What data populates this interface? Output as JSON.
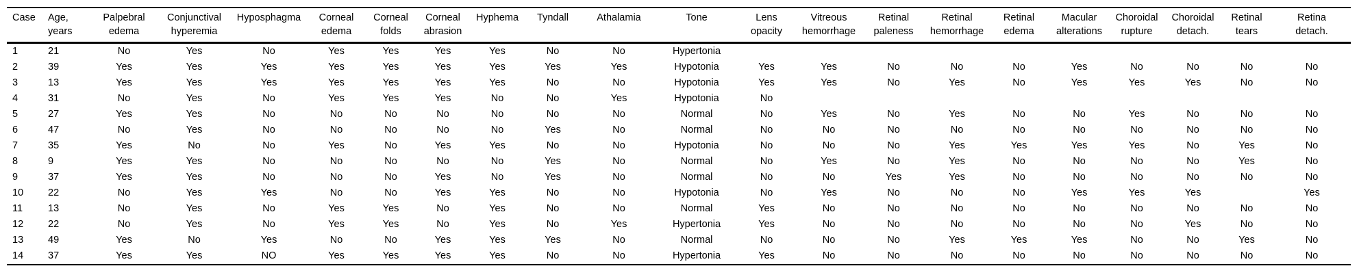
{
  "table": {
    "columns": [
      {
        "id": "case",
        "line1": "Case",
        "line2": ""
      },
      {
        "id": "age-years",
        "line1": "Age,",
        "line2": "years"
      },
      {
        "id": "palpebral-edema",
        "line1": "Palpebral",
        "line2": "edema"
      },
      {
        "id": "conjunctival-hyperemia",
        "line1": "Conjunctival",
        "line2": "hyperemia"
      },
      {
        "id": "hyposphagma",
        "line1": "Hyposphagma",
        "line2": ""
      },
      {
        "id": "corneal-edema",
        "line1": "Corneal",
        "line2": "edema"
      },
      {
        "id": "corneal-folds",
        "line1": "Corneal",
        "line2": "folds"
      },
      {
        "id": "corneal-abrasion",
        "line1": "Corneal",
        "line2": "abrasion"
      },
      {
        "id": "hyphema",
        "line1": "Hyphema",
        "line2": ""
      },
      {
        "id": "tyndall",
        "line1": "Tyndall",
        "line2": ""
      },
      {
        "id": "athalamia",
        "line1": "Athalamia",
        "line2": ""
      },
      {
        "id": "tone",
        "line1": "Tone",
        "line2": ""
      },
      {
        "id": "lens-opacity",
        "line1": "Lens",
        "line2": "opacity"
      },
      {
        "id": "vitreous-hemorrhage",
        "line1": "Vitreous",
        "line2": "hemorrhage"
      },
      {
        "id": "retinal-paleness",
        "line1": "Retinal",
        "line2": "paleness"
      },
      {
        "id": "retinal-hemorrhage",
        "line1": "Retinal",
        "line2": "hemorrhage"
      },
      {
        "id": "retinal-edema",
        "line1": "Retinal",
        "line2": "edema"
      },
      {
        "id": "macular-alterations",
        "line1": "Macular",
        "line2": "alterations"
      },
      {
        "id": "choroidal-rupture",
        "line1": "Choroidal",
        "line2": "rupture"
      },
      {
        "id": "choroidal-detach",
        "line1": "Choroidal",
        "line2": "detach."
      },
      {
        "id": "retinal-tears",
        "line1": "Retinal",
        "line2": "tears"
      },
      {
        "id": "retina-detach",
        "line1": "Retina",
        "line2": "detach."
      }
    ],
    "rows": [
      [
        "1",
        "21",
        "No",
        "Yes",
        "No",
        "Yes",
        "Yes",
        "Yes",
        "Yes",
        "No",
        "No",
        "Hypertonia",
        "",
        "",
        "",
        "",
        "",
        "",
        "",
        "",
        "",
        ""
      ],
      [
        "2",
        "39",
        "Yes",
        "Yes",
        "Yes",
        "Yes",
        "Yes",
        "Yes",
        "Yes",
        "Yes",
        "Yes",
        "Hypotonia",
        "Yes",
        "Yes",
        "No",
        "No",
        "No",
        "Yes",
        "No",
        "No",
        "No",
        "No"
      ],
      [
        "3",
        "13",
        "Yes",
        "Yes",
        "Yes",
        "Yes",
        "Yes",
        "Yes",
        "Yes",
        "No",
        "No",
        "Hypotonia",
        "Yes",
        "Yes",
        "No",
        "Yes",
        "No",
        "Yes",
        "Yes",
        "Yes",
        "No",
        "No"
      ],
      [
        "4",
        "31",
        "No",
        "Yes",
        "No",
        "Yes",
        "Yes",
        "Yes",
        "No",
        "No",
        "Yes",
        "Hypotonia",
        "No",
        "",
        "",
        "",
        "",
        "",
        "",
        "",
        "",
        ""
      ],
      [
        "5",
        "27",
        "Yes",
        "Yes",
        "No",
        "No",
        "No",
        "No",
        "No",
        "No",
        "No",
        "Normal",
        "No",
        "Yes",
        "No",
        "Yes",
        "No",
        "No",
        "Yes",
        "No",
        "No",
        "No"
      ],
      [
        "6",
        "47",
        "No",
        "Yes",
        "No",
        "No",
        "No",
        "No",
        "No",
        "Yes",
        "No",
        "Normal",
        "No",
        "No",
        "No",
        "No",
        "No",
        "No",
        "No",
        "No",
        "No",
        "No"
      ],
      [
        "7",
        "35",
        "Yes",
        "No",
        "No",
        "Yes",
        "No",
        "Yes",
        "Yes",
        "No",
        "No",
        "Hypotonia",
        "No",
        "No",
        "No",
        "Yes",
        "Yes",
        "Yes",
        "Yes",
        "No",
        "Yes",
        "No"
      ],
      [
        "8",
        "9",
        "Yes",
        "Yes",
        "No",
        "No",
        "No",
        "No",
        "No",
        "Yes",
        "No",
        "Normal",
        "No",
        "Yes",
        "No",
        "Yes",
        "No",
        "No",
        "No",
        "No",
        "Yes",
        "No"
      ],
      [
        "9",
        "37",
        "Yes",
        "Yes",
        "No",
        "No",
        "No",
        "Yes",
        "No",
        "Yes",
        "No",
        "Normal",
        "No",
        "No",
        "Yes",
        "Yes",
        "No",
        "No",
        "No",
        "No",
        "No",
        "No"
      ],
      [
        "10",
        "22",
        "No",
        "Yes",
        "Yes",
        "No",
        "No",
        "Yes",
        "Yes",
        "No",
        "No",
        "Hypotonia",
        "No",
        "Yes",
        "No",
        "No",
        "No",
        "Yes",
        "Yes",
        "Yes",
        "",
        "Yes"
      ],
      [
        "11",
        "13",
        "No",
        "Yes",
        "No",
        "Yes",
        "Yes",
        "No",
        "Yes",
        "No",
        "No",
        "Normal",
        "Yes",
        "No",
        "No",
        "No",
        "No",
        "No",
        "No",
        "No",
        "No",
        "No"
      ],
      [
        "12",
        "22",
        "No",
        "Yes",
        "No",
        "Yes",
        "Yes",
        "No",
        "Yes",
        "No",
        "Yes",
        "Hypertonia",
        "Yes",
        "No",
        "No",
        "No",
        "No",
        "No",
        "No",
        "Yes",
        "No",
        "No"
      ],
      [
        "13",
        "49",
        "Yes",
        "No",
        "Yes",
        "No",
        "No",
        "Yes",
        "Yes",
        "Yes",
        "No",
        "Normal",
        "No",
        "No",
        "No",
        "Yes",
        "Yes",
        "Yes",
        "No",
        "No",
        "Yes",
        "No"
      ],
      [
        "14",
        "37",
        "Yes",
        "Yes",
        "NO",
        "Yes",
        "Yes",
        "Yes",
        "Yes",
        "No",
        "No",
        "Hypertonia",
        "Yes",
        "No",
        "No",
        "No",
        "No",
        "No",
        "No",
        "No",
        "No",
        "No"
      ]
    ]
  }
}
